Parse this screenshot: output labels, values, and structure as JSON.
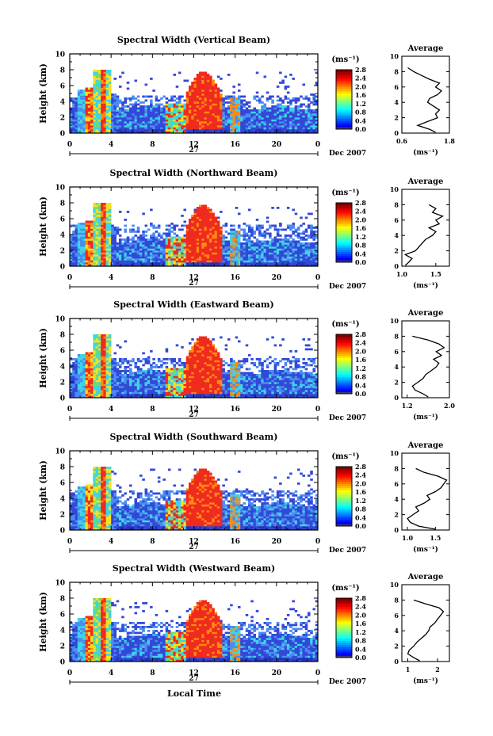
{
  "figure": {
    "xaxis_label": "Local Time",
    "date_label": "Dec 2007",
    "date_day": "27",
    "colorbar_unit": "(ms⁻¹)",
    "profile_title": "Average",
    "profile_unit": "(ms⁻¹)",
    "height_label": "Height (km)"
  },
  "chart_data": [
    {
      "type": "heatmap",
      "title": "Spectral Width (Vertical Beam)",
      "xlabel": "Local Time",
      "ylabel": "Height (km)",
      "x_ticks": [
        "0",
        "4",
        "8",
        "12",
        "16",
        "20",
        "0"
      ],
      "y_ticks": [
        "0",
        "2",
        "4",
        "6",
        "8",
        "10"
      ],
      "xlim": [
        0,
        24
      ],
      "ylim": [
        0,
        10
      ],
      "colorbar": {
        "unit": "(ms⁻¹)",
        "ticks": [
          "0.0",
          "0.4",
          "0.8",
          "1.2",
          "1.6",
          "2.0",
          "2.4",
          "2.8"
        ],
        "range": [
          0,
          2.8
        ]
      },
      "profile": {
        "title": "Average",
        "xlabel": "(ms⁻¹)",
        "x_ticks": [
          "0.6",
          "1.8"
        ],
        "xlim": [
          0.6,
          1.8
        ],
        "heights": [
          0.1,
          0.5,
          1.0,
          1.5,
          2.0,
          2.5,
          3.0,
          3.5,
          4.0,
          4.5,
          5.0,
          5.5,
          6.0,
          6.5,
          7.0,
          7.5,
          8.0,
          8.5
        ],
        "values": [
          1.45,
          1.3,
          1.0,
          1.25,
          1.5,
          1.45,
          1.55,
          1.4,
          1.25,
          1.3,
          1.5,
          1.6,
          1.45,
          1.55,
          1.3,
          1.1,
          0.9,
          0.75
        ]
      }
    },
    {
      "type": "heatmap",
      "title": "Spectral Width (Northward Beam)",
      "xlabel": "Local Time",
      "ylabel": "Height (km)",
      "x_ticks": [
        "0",
        "4",
        "8",
        "12",
        "16",
        "20",
        "0"
      ],
      "y_ticks": [
        "0",
        "2",
        "4",
        "6",
        "8",
        "10"
      ],
      "xlim": [
        0,
        24
      ],
      "ylim": [
        0,
        10
      ],
      "colorbar": {
        "unit": "(ms⁻¹)",
        "ticks": [
          "0.0",
          "0.4",
          "0.8",
          "1.2",
          "1.6",
          "2.0",
          "2.4",
          "2.8"
        ],
        "range": [
          0,
          2.8
        ]
      },
      "profile": {
        "title": "Average",
        "xlabel": "(ms⁻¹)",
        "x_ticks": [
          "1.0",
          "1.5"
        ],
        "xlim": [
          1.0,
          1.7
        ],
        "heights": [
          0.1,
          0.5,
          1.0,
          1.5,
          2.0,
          2.5,
          3.0,
          3.5,
          4.0,
          4.5,
          5.0,
          5.5,
          6.0,
          6.5,
          7.0,
          7.5,
          8.0
        ],
        "values": [
          1.05,
          1.1,
          1.15,
          1.05,
          1.2,
          1.25,
          1.3,
          1.35,
          1.45,
          1.5,
          1.4,
          1.55,
          1.5,
          1.6,
          1.45,
          1.5,
          1.4
        ]
      }
    },
    {
      "type": "heatmap",
      "title": "Spectral Width (Eastward Beam)",
      "xlabel": "Local Time",
      "ylabel": "Height (km)",
      "x_ticks": [
        "0",
        "4",
        "8",
        "12",
        "16",
        "20",
        "0"
      ],
      "y_ticks": [
        "0",
        "2",
        "4",
        "6",
        "8",
        "10"
      ],
      "xlim": [
        0,
        24
      ],
      "ylim": [
        0,
        10
      ],
      "colorbar": {
        "unit": "(ms⁻¹)",
        "ticks": [
          "0.0",
          "0.4",
          "0.8",
          "1.2",
          "1.6",
          "2.0",
          "2.4",
          "2.8"
        ],
        "range": [
          0,
          2.8
        ]
      },
      "profile": {
        "title": "Average",
        "xlabel": "(ms⁻¹)",
        "x_ticks": [
          "1.2",
          "2.0"
        ],
        "xlim": [
          1.1,
          2.0
        ],
        "heights": [
          0.1,
          0.5,
          1.0,
          1.5,
          2.0,
          2.5,
          3.0,
          3.5,
          4.0,
          4.5,
          5.0,
          5.5,
          6.0,
          6.5,
          7.0,
          7.5,
          8.0
        ],
        "values": [
          1.6,
          1.5,
          1.35,
          1.3,
          1.4,
          1.5,
          1.55,
          1.65,
          1.75,
          1.8,
          1.7,
          1.85,
          1.75,
          1.9,
          1.8,
          1.6,
          1.3
        ]
      }
    },
    {
      "type": "heatmap",
      "title": "Spectral Width (Southward Beam)",
      "xlabel": "Local Time",
      "ylabel": "Height (km)",
      "x_ticks": [
        "0",
        "4",
        "8",
        "12",
        "16",
        "20",
        "0"
      ],
      "y_ticks": [
        "0",
        "2",
        "4",
        "6",
        "8",
        "10"
      ],
      "xlim": [
        0,
        24
      ],
      "ylim": [
        0,
        10
      ],
      "colorbar": {
        "unit": "(ms⁻¹)",
        "ticks": [
          "0.0",
          "0.4",
          "0.8",
          "1.2",
          "1.6",
          "2.0",
          "2.4",
          "2.8"
        ],
        "range": [
          0,
          2.8
        ]
      },
      "profile": {
        "title": "Average",
        "xlabel": "(ms⁻¹)",
        "x_ticks": [
          "1.0",
          "1.5"
        ],
        "xlim": [
          0.9,
          1.75
        ],
        "heights": [
          0.1,
          0.5,
          1.0,
          1.5,
          2.0,
          2.5,
          3.0,
          3.5,
          4.0,
          4.5,
          5.0,
          5.5,
          6.0,
          6.5,
          7.0,
          7.5,
          8.0
        ],
        "values": [
          1.5,
          1.2,
          1.05,
          1.0,
          1.1,
          1.2,
          1.15,
          1.3,
          1.4,
          1.35,
          1.5,
          1.6,
          1.65,
          1.7,
          1.55,
          1.3,
          1.15
        ]
      }
    },
    {
      "type": "heatmap",
      "title": "Spectral Width (Westward Beam)",
      "xlabel": "Local Time",
      "ylabel": "Height (km)",
      "x_ticks": [
        "0",
        "4",
        "8",
        "12",
        "16",
        "20",
        "0"
      ],
      "y_ticks": [
        "0",
        "2",
        "4",
        "6",
        "8",
        "10"
      ],
      "xlim": [
        0,
        24
      ],
      "ylim": [
        0,
        10
      ],
      "colorbar": {
        "unit": "(ms⁻¹)",
        "ticks": [
          "0.0",
          "0.4",
          "0.8",
          "1.2",
          "1.6",
          "2.0",
          "2.4",
          "2.8"
        ],
        "range": [
          0,
          2.8
        ]
      },
      "profile": {
        "title": "Average",
        "xlabel": "(ms⁻¹)",
        "x_ticks": [
          "1",
          "2"
        ],
        "xlim": [
          0.8,
          2.4
        ],
        "heights": [
          0.1,
          0.5,
          1.0,
          1.5,
          2.0,
          2.5,
          3.0,
          3.5,
          4.0,
          4.5,
          5.0,
          5.5,
          6.0,
          6.5,
          7.0,
          7.5,
          8.0
        ],
        "values": [
          1.4,
          1.2,
          1.0,
          1.05,
          1.2,
          1.3,
          1.45,
          1.6,
          1.7,
          1.75,
          1.9,
          2.0,
          2.1,
          2.2,
          2.05,
          1.6,
          1.2
        ]
      }
    }
  ]
}
